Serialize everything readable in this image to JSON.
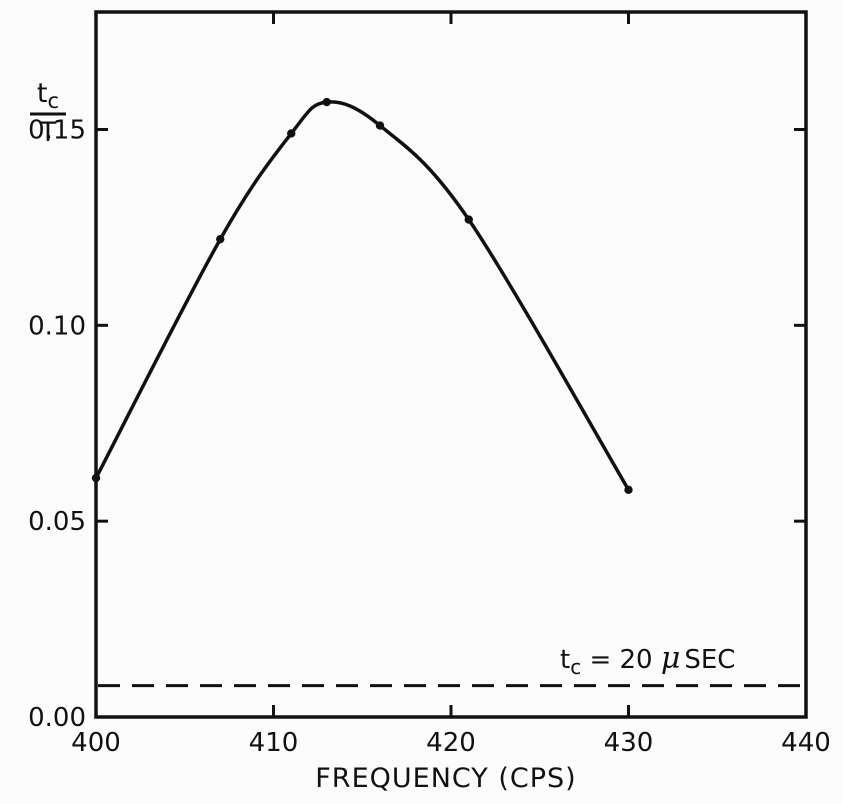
{
  "chart_data": {
    "type": "line",
    "title": "",
    "xlabel": "FREQUENCY (CPS)",
    "ylabel": {
      "numerator": "tc",
      "denominator": "T"
    },
    "xlim": [
      400,
      440
    ],
    "ylim": [
      0.0,
      0.18
    ],
    "x_ticks": [
      400,
      410,
      420,
      430,
      440
    ],
    "x_tick_labels": [
      "400",
      "410",
      "420",
      "430",
      "440"
    ],
    "y_ticks": [
      0.0,
      0.05,
      0.1,
      0.15
    ],
    "y_tick_labels": [
      "0.00",
      "0.05",
      "0.10",
      "0.15"
    ],
    "grid": false,
    "legend": "none",
    "series": [
      {
        "points": [
          {
            "x": 400,
            "y": 0.061
          },
          {
            "x": 407,
            "y": 0.122
          },
          {
            "x": 411,
            "y": 0.149
          },
          {
            "x": 413,
            "y": 0.157
          },
          {
            "x": 416,
            "y": 0.151
          },
          {
            "x": 421,
            "y": 0.127
          },
          {
            "x": 430,
            "y": 0.058
          }
        ]
      }
    ],
    "reference_line": {
      "y": 0.008,
      "style": "dashed"
    },
    "annotation": {
      "t": "t",
      "sub": "c",
      "eq": " = 20 ",
      "mu": "μ",
      "unit": "SEC"
    }
  }
}
